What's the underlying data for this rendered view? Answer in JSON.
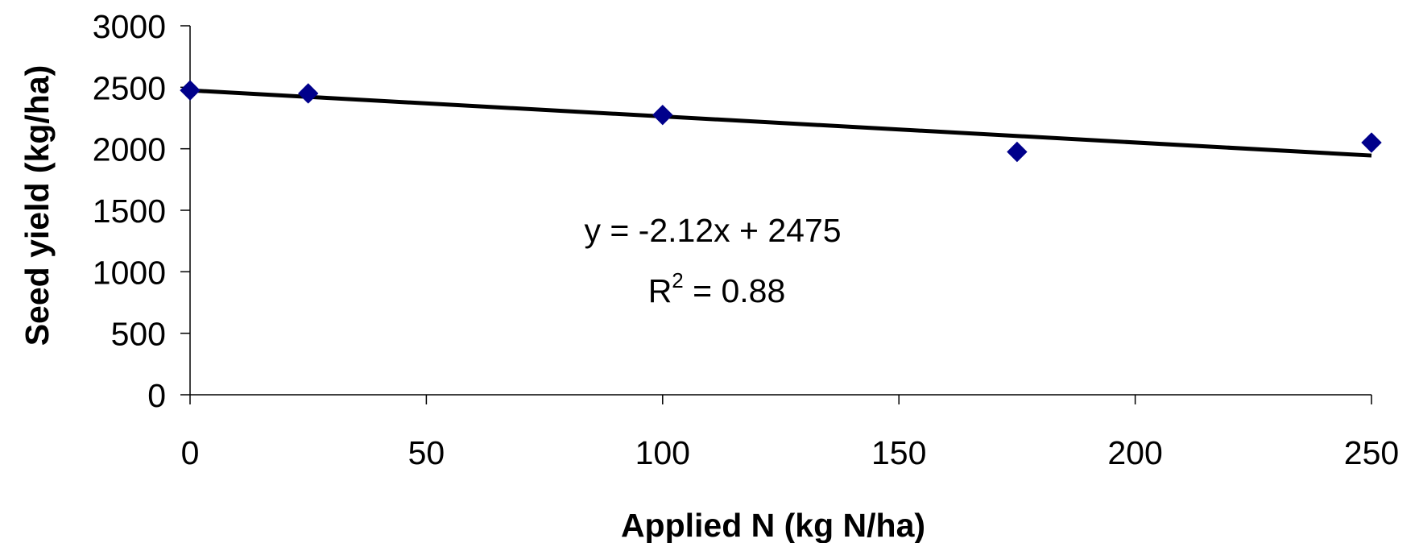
{
  "chart_data": {
    "type": "scatter",
    "xlabel": "Applied N (kg N/ha)",
    "ylabel": "Seed yield (kg/ha)",
    "xlim": [
      0,
      250
    ],
    "ylim": [
      0,
      3000
    ],
    "xticks": [
      0,
      50,
      100,
      150,
      200,
      250
    ],
    "yticks": [
      0,
      500,
      1000,
      1500,
      2000,
      2500,
      3000
    ],
    "grid": false,
    "series": [
      {
        "x": [
          0,
          25,
          100,
          175,
          250
        ],
        "y": [
          2475,
          2450,
          2275,
          1975,
          2050
        ],
        "marker": "diamond",
        "color": "#00008B"
      }
    ],
    "trendline": {
      "slope": -2.12,
      "intercept": 2475,
      "color": "#000000"
    },
    "annotation": {
      "equation": "y = -2.12x + 2475",
      "r2_prefix": "R",
      "r2_sup": "2",
      "r2_suffix": " = 0.88"
    }
  }
}
